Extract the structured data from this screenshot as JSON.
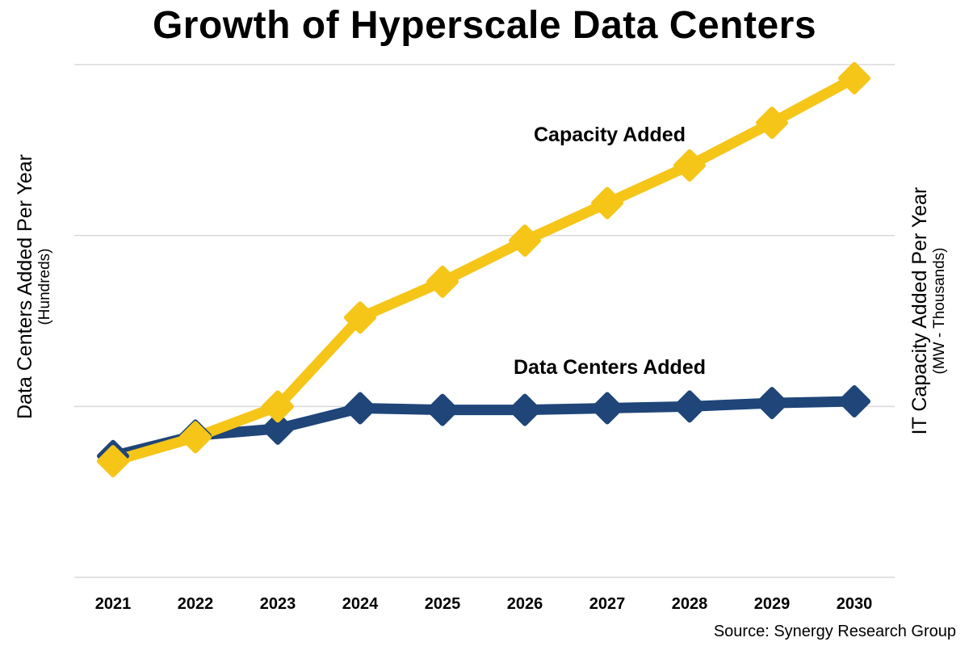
{
  "chart_data": {
    "type": "line",
    "title": "Growth of Hyperscale Data Centers",
    "ylabel_left": "Data Centers Added Per Year",
    "ylabel_left_unit": "(Hundreds)",
    "ylabel_right": "IT Capacity Added Per Year",
    "ylabel_right_unit": "(MW - Thousands)",
    "xlabel": "",
    "categories": [
      "2021",
      "2022",
      "2023",
      "2024",
      "2025",
      "2026",
      "2027",
      "2028",
      "2029",
      "2030"
    ],
    "ylim": [
      0,
      3
    ],
    "grid": true,
    "series": [
      {
        "name": "Capacity Added",
        "color": "#F5C518",
        "values": [
          0.68,
          0.82,
          1.0,
          1.52,
          1.73,
          1.97,
          2.19,
          2.41,
          2.66,
          2.92
        ]
      },
      {
        "name": "Data Centers Added",
        "color": "#1F4579",
        "values": [
          0.71,
          0.83,
          0.87,
          0.99,
          0.98,
          0.98,
          0.99,
          1.0,
          1.02,
          1.03
        ]
      }
    ],
    "source": "Source: Synergy Research Group"
  }
}
